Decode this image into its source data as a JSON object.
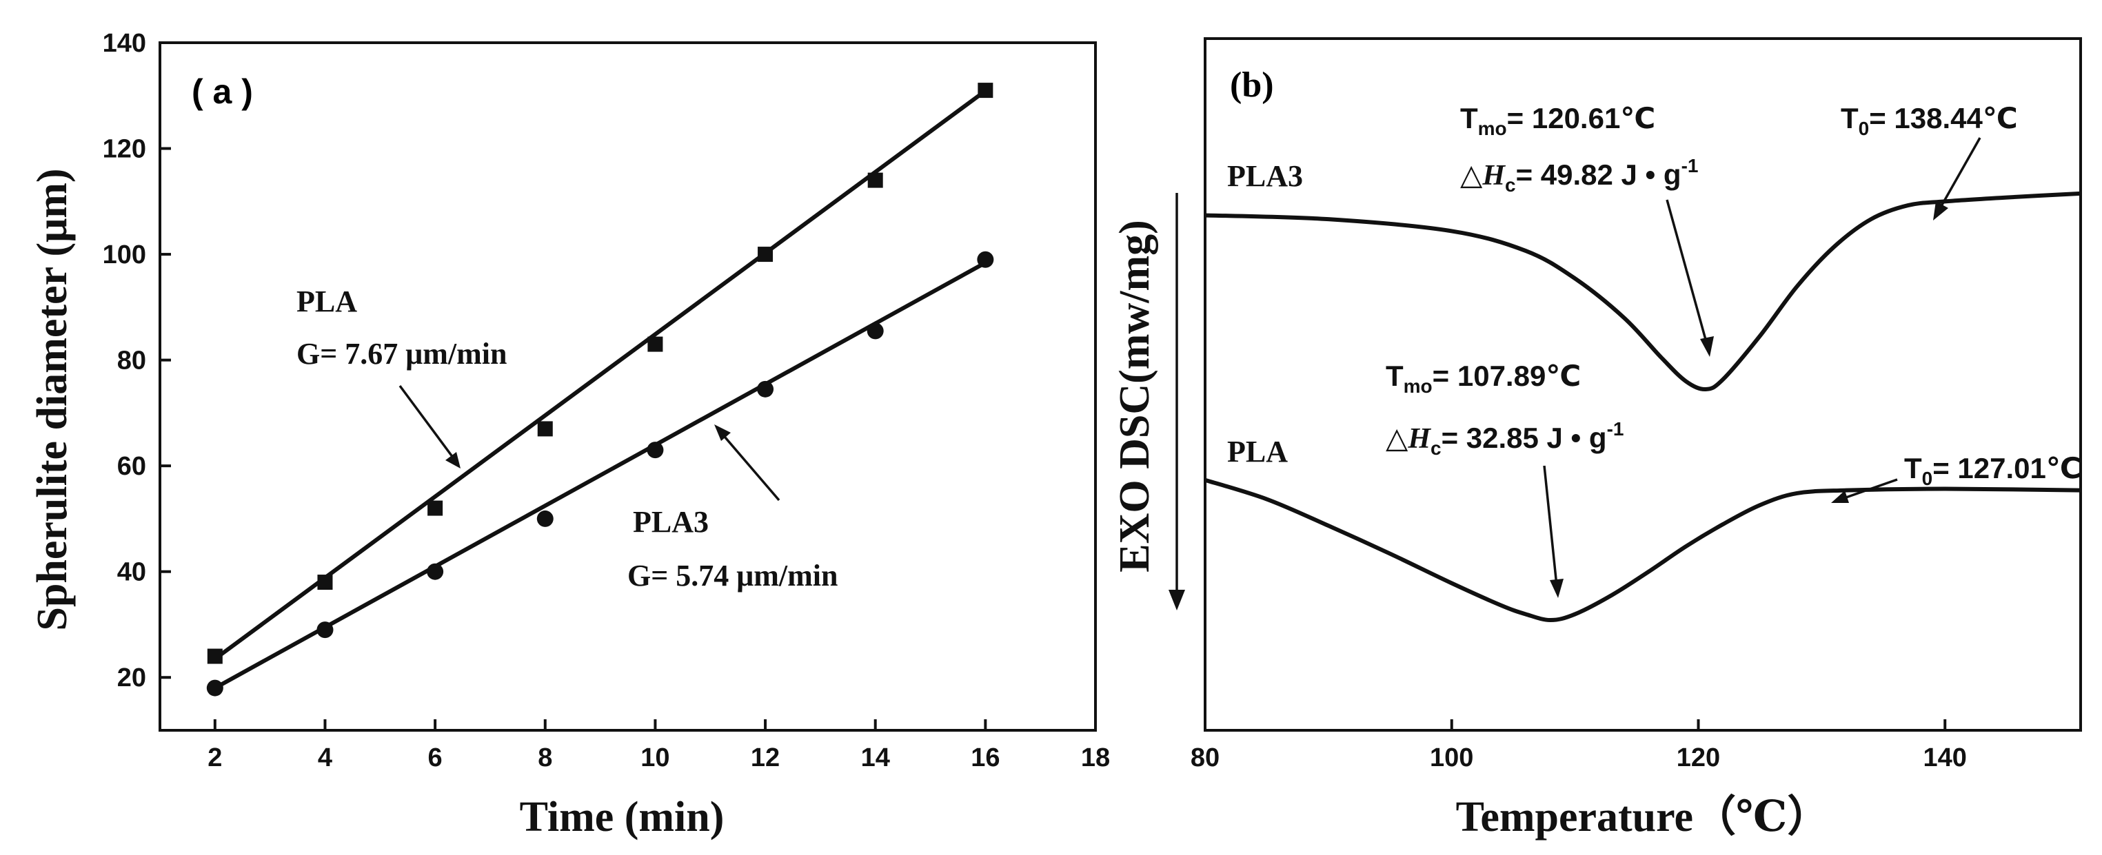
{
  "chart_data": [
    {
      "type": "scatter",
      "panel_label": "( a )",
      "title": "",
      "xlabel": "Time (min)",
      "ylabel": "Spherulite diameter  (μm)",
      "xlim": [
        1,
        18
      ],
      "ylim": [
        10,
        140
      ],
      "xticks": [
        2,
        4,
        6,
        8,
        10,
        12,
        14,
        16,
        18
      ],
      "yticks": [
        20,
        40,
        60,
        80,
        100,
        120,
        140
      ],
      "series": [
        {
          "name": "PLA",
          "marker": "square",
          "x": [
            2,
            4,
            6,
            8,
            10,
            12,
            14,
            16
          ],
          "y": [
            24,
            38,
            52,
            67,
            83,
            100,
            114,
            131
          ],
          "fit": {
            "x0": 2,
            "y0": 23.5,
            "x1": 16,
            "y1": 130.9
          },
          "label": "PLA",
          "rate": "G= 7.67 μm/min"
        },
        {
          "name": "PLA3",
          "marker": "circle",
          "x": [
            2,
            4,
            6,
            8,
            10,
            12,
            14,
            16
          ],
          "y": [
            18,
            29,
            40,
            50,
            63,
            74.5,
            85.5,
            99
          ],
          "fit": {
            "x0": 2,
            "y0": 18,
            "x1": 16,
            "y1": 98.4
          },
          "label": "PLA3",
          "rate": "G= 5.74 μm/min"
        }
      ]
    },
    {
      "type": "line",
      "panel_label": "(b)",
      "title": "",
      "xlabel": "Temperature（℃）",
      "ylabel": "EXO DSC(mw/mg)",
      "xlim": [
        80,
        151
      ],
      "xticks": [
        80,
        100,
        120,
        140
      ],
      "yticks": [],
      "exo_arrow": "down",
      "series": [
        {
          "name": "PLA3",
          "label": "PLA3",
          "x": [
            80,
            90,
            100,
            106,
            110,
            114,
            117,
            119,
            120.6,
            122,
            125,
            128,
            131,
            134,
            137,
            140,
            145,
            151
          ],
          "y": [
            0.88,
            0.86,
            0.8,
            0.7,
            0.56,
            0.36,
            0.16,
            0.04,
            0.0,
            0.05,
            0.27,
            0.52,
            0.72,
            0.86,
            0.93,
            0.95,
            0.97,
            0.99
          ],
          "peak_temp": "T",
          "peak_sub": "mo",
          "peak_value": "= 120.61℃",
          "dh_symbol": "△",
          "dh_H": "H",
          "dh_sub": "c",
          "dh_value": "= 49.82 J • g",
          "dh_exp": "-1",
          "onset_T": "T",
          "onset_sub": "0",
          "onset_value": "= 138.44℃"
        },
        {
          "name": "PLA",
          "label": "PLA",
          "x": [
            80,
            85,
            90,
            95,
            100,
            104,
            106,
            108,
            110,
            113,
            116,
            119,
            122,
            125,
            128,
            132,
            140,
            151
          ],
          "y": [
            0.95,
            0.82,
            0.64,
            0.45,
            0.25,
            0.1,
            0.04,
            0.0,
            0.04,
            0.17,
            0.33,
            0.5,
            0.65,
            0.78,
            0.86,
            0.88,
            0.89,
            0.88
          ],
          "peak_temp": "T",
          "peak_sub": "mo",
          "peak_value": "= 107.89℃",
          "dh_symbol": "△",
          "dh_H": "H",
          "dh_sub": "c",
          "dh_value": "= 32.85 J • g",
          "dh_exp": "-1",
          "onset_T": "T",
          "onset_sub": "0",
          "onset_value": "= 127.01℃"
        }
      ]
    }
  ]
}
